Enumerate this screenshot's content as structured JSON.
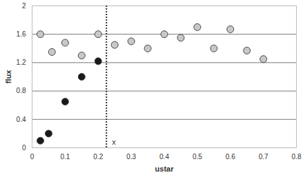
{
  "chart_data": {
    "type": "scatter",
    "x_label": "ustar",
    "y_label": "flux",
    "xlim": [
      0,
      0.8
    ],
    "xticks": [
      0,
      0.1,
      0.2,
      0.3,
      0.4,
      0.5,
      0.6,
      0.7,
      0.8
    ],
    "ylim": [
      0,
      2
    ],
    "yticks": [
      0,
      0.4,
      0.8,
      1.2,
      1.6,
      2
    ],
    "grid": true,
    "series": [
      {
        "color": "#c8c8c8",
        "marker": "circle",
        "x": [
          0.025,
          0.06,
          0.1,
          0.15,
          0.2,
          0.25,
          0.3,
          0.35,
          0.4,
          0.45,
          0.5,
          0.55,
          0.6,
          0.65,
          0.7
        ],
        "values": [
          1.6,
          1.35,
          1.48,
          1.3,
          1.6,
          1.45,
          1.5,
          1.4,
          1.6,
          1.55,
          1.7,
          1.4,
          1.67,
          1.37,
          1.25
        ]
      },
      {
        "color": "#1a1a1a",
        "marker": "circle",
        "x": [
          0.025,
          0.05,
          0.1,
          0.15,
          0.2
        ],
        "values": [
          0.1,
          0.2,
          0.65,
          1.0,
          1.22
        ]
      }
    ],
    "annotations": [
      {
        "text": "x",
        "x": 0.225,
        "line_style": "dotted"
      }
    ]
  }
}
